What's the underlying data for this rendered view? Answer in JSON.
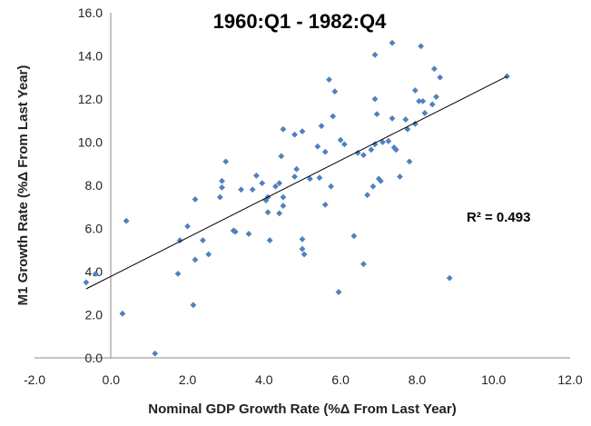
{
  "chart_data": {
    "type": "scatter",
    "title": "1960:Q1 - 1982:Q4",
    "xlabel": "Nominal GDP Growth Rate (%Δ From Last Year)",
    "ylabel": "M1 Growth Rate (%Δ From Last Year)",
    "xlim": [
      -2,
      12
    ],
    "ylim": [
      0,
      16
    ],
    "x_ticks": [
      "-2.0",
      "0.0",
      "2.0",
      "4.0",
      "6.0",
      "8.0",
      "10.0",
      "12.0"
    ],
    "y_ticks": [
      "0.0",
      "2.0",
      "4.0",
      "6.0",
      "8.0",
      "10.0",
      "12.0",
      "14.0",
      "16.0"
    ],
    "grid": false,
    "marker_color": "#4F81BD",
    "trendline": {
      "x": [
        -0.65,
        10.35
      ],
      "y": [
        3.2,
        13.05
      ]
    },
    "annotation": "R² = 0.493",
    "points": [
      [
        -0.65,
        3.5
      ],
      [
        -0.4,
        3.9
      ],
      [
        0.3,
        2.05
      ],
      [
        0.4,
        6.35
      ],
      [
        1.15,
        0.2
      ],
      [
        1.75,
        3.9
      ],
      [
        1.8,
        5.45
      ],
      [
        2.0,
        6.1
      ],
      [
        2.2,
        7.35
      ],
      [
        2.15,
        2.45
      ],
      [
        2.2,
        4.55
      ],
      [
        2.4,
        5.45
      ],
      [
        2.55,
        4.8
      ],
      [
        2.85,
        7.45
      ],
      [
        2.9,
        7.9
      ],
      [
        2.9,
        8.2
      ],
      [
        3.0,
        9.1
      ],
      [
        3.2,
        5.9
      ],
      [
        3.25,
        5.85
      ],
      [
        3.4,
        7.8
      ],
      [
        3.6,
        5.75
      ],
      [
        3.7,
        7.8
      ],
      [
        3.8,
        8.45
      ],
      [
        3.95,
        8.1
      ],
      [
        4.05,
        7.3
      ],
      [
        4.1,
        6.75
      ],
      [
        4.15,
        5.45
      ],
      [
        4.1,
        7.45
      ],
      [
        4.3,
        7.95
      ],
      [
        4.4,
        8.1
      ],
      [
        4.4,
        6.7
      ],
      [
        4.45,
        9.35
      ],
      [
        4.5,
        10.6
      ],
      [
        4.5,
        7.05
      ],
      [
        4.5,
        7.45
      ],
      [
        4.8,
        10.35
      ],
      [
        4.8,
        8.4
      ],
      [
        4.85,
        8.75
      ],
      [
        5.0,
        10.5
      ],
      [
        5.0,
        5.5
      ],
      [
        5.0,
        5.05
      ],
      [
        5.05,
        4.8
      ],
      [
        5.2,
        8.3
      ],
      [
        5.4,
        9.8
      ],
      [
        5.45,
        8.35
      ],
      [
        5.5,
        10.75
      ],
      [
        5.6,
        9.55
      ],
      [
        5.6,
        7.1
      ],
      [
        5.7,
        12.9
      ],
      [
        5.75,
        7.95
      ],
      [
        5.8,
        11.2
      ],
      [
        5.85,
        12.35
      ],
      [
        5.95,
        3.05
      ],
      [
        6.0,
        10.1
      ],
      [
        6.1,
        9.9
      ],
      [
        6.35,
        5.65
      ],
      [
        6.45,
        9.5
      ],
      [
        6.6,
        9.4
      ],
      [
        6.6,
        4.35
      ],
      [
        6.7,
        7.55
      ],
      [
        6.8,
        9.65
      ],
      [
        6.85,
        7.95
      ],
      [
        6.9,
        14.05
      ],
      [
        6.9,
        12.0
      ],
      [
        6.95,
        11.3
      ],
      [
        6.9,
        9.9
      ],
      [
        7.0,
        8.3
      ],
      [
        7.05,
        8.2
      ],
      [
        7.1,
        10.0
      ],
      [
        7.25,
        10.05
      ],
      [
        7.35,
        14.6
      ],
      [
        7.35,
        11.1
      ],
      [
        7.4,
        9.75
      ],
      [
        7.45,
        9.65
      ],
      [
        7.55,
        8.4
      ],
      [
        7.7,
        11.05
      ],
      [
        7.75,
        10.6
      ],
      [
        7.8,
        9.1
      ],
      [
        7.95,
        10.85
      ],
      [
        7.95,
        12.4
      ],
      [
        8.05,
        11.9
      ],
      [
        8.1,
        14.45
      ],
      [
        8.15,
        11.9
      ],
      [
        8.2,
        11.35
      ],
      [
        8.4,
        11.75
      ],
      [
        8.45,
        13.4
      ],
      [
        8.5,
        12.1
      ],
      [
        8.6,
        13.0
      ],
      [
        8.85,
        3.7
      ],
      [
        10.35,
        13.05
      ]
    ]
  }
}
